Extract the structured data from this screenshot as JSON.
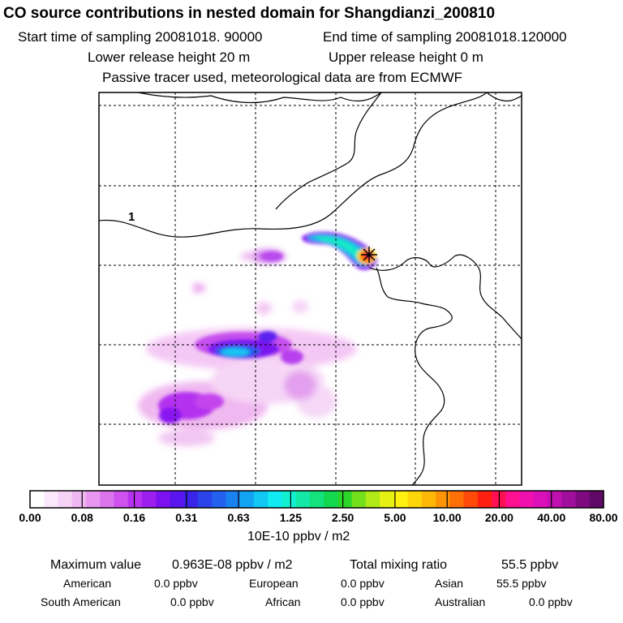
{
  "title": "CO  source contributions in nested domain for Shangdianzi_200810",
  "sampling": {
    "start": "Start time of sampling 20081018. 90000",
    "end": "End time of sampling 20081018.120000"
  },
  "release": {
    "lower": "Lower release height   20 m",
    "upper": "Upper release height    0 m"
  },
  "note": "Passive tracer used, meteorological data are from ECMWF",
  "map": {
    "region_label": "1",
    "receptor_marker": "star-marker"
  },
  "colorbar": {
    "ticks": [
      "0.00",
      "0.08",
      "0.16",
      "0.31",
      "0.63",
      "1.25",
      "2.50",
      "5.00",
      "10.00",
      "20.00",
      "40.00",
      "80.00"
    ],
    "units": "10E-10 ppbv / m2",
    "colors": [
      "#ffffff",
      "#fbe8fb",
      "#f6d2f6",
      "#f0b8f0",
      "#e896ef",
      "#dc74ee",
      "#cf52ee",
      "#b833ef",
      "#9d1ff0",
      "#7d12f0",
      "#5a14ee",
      "#3b24ea",
      "#2a44ea",
      "#2260ee",
      "#1a82f0",
      "#12a4f2",
      "#10c8f2",
      "#10eaf2",
      "#12f0d2",
      "#14e8a6",
      "#14e27c",
      "#12d850",
      "#2ad628",
      "#74e01c",
      "#b0ea16",
      "#e6f012",
      "#fff20e",
      "#ffd60a",
      "#ffb808",
      "#ff9406",
      "#ff7006",
      "#ff4a0a",
      "#ff2010",
      "#ff1050",
      "#ff1090",
      "#f010b0",
      "#dc10b8",
      "#c010b0",
      "#a00e9c",
      "#7e0a80",
      "#5e0a66"
    ]
  },
  "stats": {
    "max_label": "Maximum value",
    "max_value": "0.963E-08 ppbv / m2",
    "total_label": "Total mixing ratio",
    "total_value": "55.5 ppbv"
  },
  "regions": [
    {
      "name": "American",
      "value": "0.0 ppbv"
    },
    {
      "name": "European",
      "value": "0.0 ppbv"
    },
    {
      "name": "Asian",
      "value": "55.5 ppbv"
    },
    {
      "name": "South American",
      "value": "0.0 ppbv"
    },
    {
      "name": "African",
      "value": "0.0 ppbv"
    },
    {
      "name": "Australian",
      "value": "0.0 ppbv"
    }
  ]
}
